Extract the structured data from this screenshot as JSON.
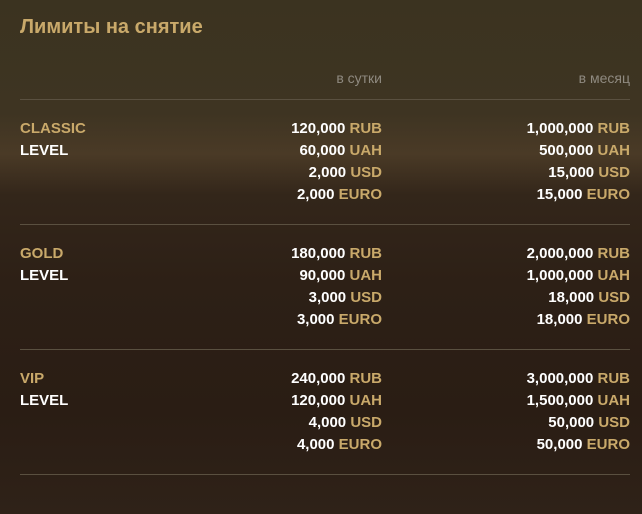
{
  "title": "Лимиты на снятие",
  "columns": {
    "day": "в сутки",
    "month": "в месяц"
  },
  "accent": "#c9a96a",
  "levels": [
    {
      "name": "CLASSIC",
      "suffix": "LEVEL",
      "day": [
        [
          "120,000",
          "RUB"
        ],
        [
          "60,000",
          "UAH"
        ],
        [
          "2,000",
          "USD"
        ],
        [
          "2,000",
          "EURO"
        ]
      ],
      "month": [
        [
          "1,000,000",
          "RUB"
        ],
        [
          "500,000",
          "UAH"
        ],
        [
          "15,000",
          "USD"
        ],
        [
          "15,000",
          "EURO"
        ]
      ]
    },
    {
      "name": "GOLD",
      "suffix": "LEVEL",
      "day": [
        [
          "180,000",
          "RUB"
        ],
        [
          "90,000",
          "UAH"
        ],
        [
          "3,000",
          "USD"
        ],
        [
          "3,000",
          "EURO"
        ]
      ],
      "month": [
        [
          "2,000,000",
          "RUB"
        ],
        [
          "1,000,000",
          "UAH"
        ],
        [
          "18,000",
          "USD"
        ],
        [
          "18,000",
          "EURO"
        ]
      ]
    },
    {
      "name": "VIP",
      "suffix": "LEVEL",
      "day": [
        [
          "240,000",
          "RUB"
        ],
        [
          "120,000",
          "UAH"
        ],
        [
          "4,000",
          "USD"
        ],
        [
          "4,000",
          "EURO"
        ]
      ],
      "month": [
        [
          "3,000,000",
          "RUB"
        ],
        [
          "1,500,000",
          "UAH"
        ],
        [
          "50,000",
          "USD"
        ],
        [
          "50,000",
          "EURO"
        ]
      ]
    }
  ]
}
